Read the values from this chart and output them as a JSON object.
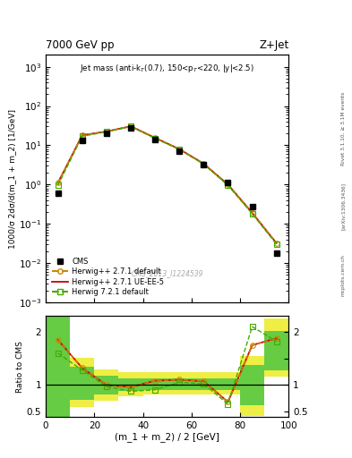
{
  "title_top": "7000 GeV pp",
  "title_right": "Z+Jet",
  "plot_title": "Jet mass (anti-k_{T}(0.7), 150<p_{T}<220, |y|<2.5)",
  "cms_label": "CMS_2013_I1224539",
  "rivet_label": "Rivet 3.1.10, ≥ 3.1M events",
  "arxiv_label": "[arXiv:1306.3436]",
  "mcplots_label": "mcplots.cern.ch",
  "xlabel": "(m_1 + m_2) / 2 [GeV]",
  "ylabel_main": "1000/σ 2dσ/d(m_1 + m_2) [1/GeV]",
  "ylabel_ratio": "Ratio to CMS",
  "xlim": [
    0,
    100
  ],
  "ylim_main": [
    0.001,
    2000
  ],
  "ylim_ratio": [
    0.4,
    2.3
  ],
  "cms_x": [
    5,
    15,
    25,
    35,
    45,
    55,
    65,
    75,
    85,
    95
  ],
  "cms_y": [
    0.6,
    13.5,
    20.0,
    28.0,
    14.0,
    7.0,
    3.2,
    1.15,
    0.28,
    0.018
  ],
  "herwig_default_x": [
    5,
    15,
    25,
    35,
    45,
    55,
    65,
    75,
    85,
    95
  ],
  "herwig_default_y": [
    1.1,
    18.0,
    22.5,
    30.5,
    15.5,
    8.0,
    3.4,
    1.0,
    0.19,
    0.032
  ],
  "herwig_ueee5_x": [
    5,
    15,
    25,
    35,
    45,
    55,
    65,
    75,
    85,
    95
  ],
  "herwig_ueee5_y": [
    1.1,
    18.0,
    22.5,
    30.5,
    15.5,
    8.0,
    3.4,
    1.0,
    0.19,
    0.032
  ],
  "herwig721_x": [
    5,
    15,
    25,
    35,
    45,
    55,
    65,
    75,
    85,
    95
  ],
  "herwig721_y": [
    0.95,
    17.0,
    22.0,
    30.0,
    15.0,
    7.8,
    3.3,
    0.95,
    0.18,
    0.03
  ],
  "ratio_herwig_default": [
    1.85,
    1.32,
    1.0,
    0.96,
    1.08,
    1.1,
    1.07,
    0.68,
    1.75,
    1.88
  ],
  "ratio_herwig_ueee5": [
    1.85,
    1.32,
    1.0,
    0.96,
    1.08,
    1.1,
    1.07,
    0.68,
    1.75,
    1.88
  ],
  "ratio_herwig721": [
    1.6,
    1.28,
    0.97,
    0.88,
    0.91,
    1.05,
    1.02,
    0.64,
    2.1,
    1.82
  ],
  "band_x_edges": [
    0,
    10,
    20,
    30,
    40,
    60,
    80,
    90,
    100
  ],
  "band_yellow_low": [
    0.4,
    0.58,
    0.7,
    0.78,
    0.82,
    0.82,
    0.42,
    1.15,
    1.15
  ],
  "band_yellow_high": [
    2.3,
    1.52,
    1.3,
    1.24,
    1.24,
    1.24,
    1.55,
    2.25,
    2.25
  ],
  "band_green_low": [
    0.4,
    0.72,
    0.82,
    0.88,
    0.9,
    0.9,
    0.62,
    1.28,
    1.28
  ],
  "band_green_high": [
    2.3,
    1.35,
    1.18,
    1.12,
    1.12,
    1.12,
    1.38,
    2.02,
    2.02
  ],
  "color_cms": "#000000",
  "color_herwig_default": "#cc8800",
  "color_herwig_ueee5": "#cc0000",
  "color_herwig721": "#44aa00",
  "color_yellow": "#eeee44",
  "color_green": "#66cc44"
}
